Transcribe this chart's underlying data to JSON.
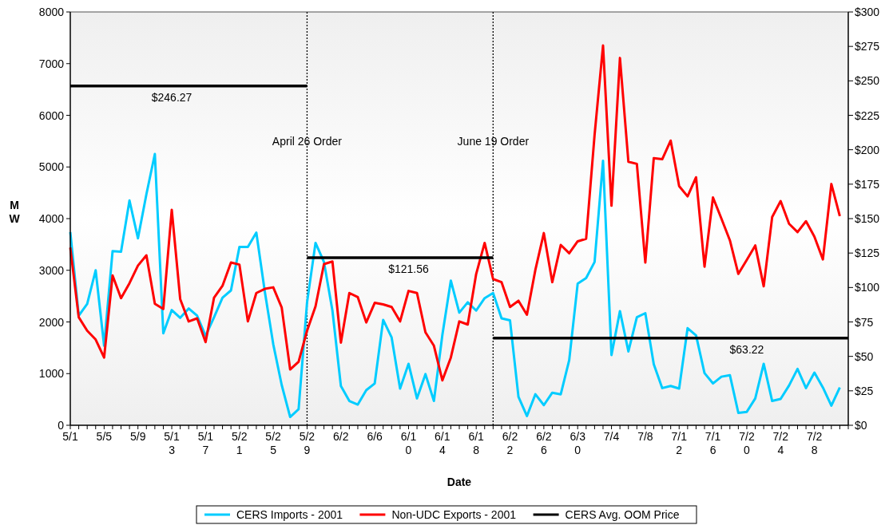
{
  "chart_data": {
    "type": "line",
    "xlabel": "Date",
    "ylabel": "MW",
    "x": [
      "--05-01",
      "--05-02",
      "--05-03",
      "--05-04",
      "--05-05",
      "--05-06",
      "--05-07",
      "--05-08",
      "--05-09",
      "--05-10",
      "--05-11",
      "--05-12",
      "--05-13",
      "--05-14",
      "--05-15",
      "--05-16",
      "--05-17",
      "--05-18",
      "--05-19",
      "--05-20",
      "--05-21",
      "--05-22",
      "--05-23",
      "--05-24",
      "--05-25",
      "--05-26",
      "--05-27",
      "--05-28",
      "--05-29",
      "--05-30",
      "--05-31",
      "--06-01",
      "--06-02",
      "--06-03",
      "--06-04",
      "--06-05",
      "--06-06",
      "--06-07",
      "--06-08",
      "--06-09",
      "--06-10",
      "--06-11",
      "--06-12",
      "--06-13",
      "--06-14",
      "--06-15",
      "--06-16",
      "--06-17",
      "--06-18",
      "--06-19",
      "--06-20",
      "--06-21",
      "--06-22",
      "--06-23",
      "--06-24",
      "--06-25",
      "--06-26",
      "--06-27",
      "--06-28",
      "--06-29",
      "--06-30",
      "--07-01",
      "--07-02",
      "--07-03",
      "--07-04",
      "--07-05",
      "--07-06",
      "--07-07",
      "--07-08",
      "--07-09",
      "--07-10",
      "--07-11",
      "--07-12",
      "--07-13",
      "--07-14",
      "--07-15",
      "--07-16",
      "--07-17",
      "--07-18",
      "--07-19",
      "--07-20",
      "--07-21",
      "--07-22",
      "--07-23",
      "--07-24",
      "--07-25",
      "--07-26",
      "--07-27",
      "--07-28",
      "--07-29",
      "--07-30",
      "--07-31"
    ],
    "series": [
      {
        "name": "CERS Imports - 2001",
        "color": "#00ccff",
        "values": [
          3740,
          2120,
          2350,
          3000,
          1540,
          3370,
          3360,
          4350,
          3620,
          4470,
          5250,
          1780,
          2230,
          2080,
          2260,
          2120,
          1730,
          2090,
          2470,
          2610,
          3450,
          3450,
          3730,
          2590,
          1570,
          780,
          160,
          310,
          2380,
          3530,
          3160,
          2220,
          760,
          470,
          400,
          680,
          810,
          2040,
          1700,
          710,
          1190,
          520,
          990,
          470,
          1750,
          2800,
          2180,
          2380,
          2220,
          2460,
          2560,
          2070,
          2030,
          550,
          180,
          600,
          390,
          630,
          600,
          1260,
          2740,
          2850,
          3160,
          5120,
          1360,
          2210,
          1430,
          2090,
          2170,
          1180,
          720,
          760,
          710,
          1880,
          1740,
          1010,
          810,
          940,
          970,
          240,
          260,
          520,
          1190,
          470,
          510,
          770,
          1090,
          720,
          1020,
          730,
          380,
          730
        ]
      },
      {
        "name": "Non-UDC Exports - 2001",
        "color": "#ff0000",
        "values": [
          3440,
          2090,
          1830,
          1660,
          1310,
          2900,
          2460,
          2750,
          3090,
          3290,
          2350,
          2250,
          4170,
          2440,
          2010,
          2070,
          1610,
          2470,
          2700,
          3150,
          3110,
          2010,
          2560,
          2640,
          2670,
          2280,
          1080,
          1230,
          1830,
          2300,
          3120,
          3170,
          1600,
          2560,
          2480,
          1990,
          2370,
          2340,
          2290,
          2010,
          2600,
          2560,
          1800,
          1540,
          870,
          1310,
          2010,
          1950,
          2930,
          3530,
          2830,
          2770,
          2290,
          2410,
          2140,
          3010,
          3720,
          2770,
          3490,
          3330,
          3560,
          3610,
          5620,
          7350,
          4250,
          7110,
          5100,
          5060,
          3150,
          5170,
          5150,
          5510,
          4630,
          4430,
          4800,
          3070,
          4410,
          4000,
          3580,
          2930,
          3200,
          3480,
          2690,
          4030,
          4340,
          3900,
          3740,
          3950,
          3650,
          3210,
          4670,
          4050
        ]
      },
      {
        "name": "CERS Avg. OOM Price",
        "color": "#000000",
        "axis": "y2",
        "x": [
          "--05-01",
          "--05-13",
          "--05-29"
        ],
        "values": [
          246.27,
          246.27,
          246.27
        ],
        "value_labels": [
          null,
          "$246.27",
          null
        ]
      },
      {
        "color": "#000000",
        "axis": "y2",
        "x": [
          "--05-29",
          "--06-10",
          "--06-20"
        ],
        "values": [
          121.56,
          121.56,
          121.56
        ],
        "value_labels": [
          null,
          "$121.56",
          null
        ]
      },
      {
        "color": "#000000",
        "axis": "y2",
        "x": [
          "--06-20",
          "--07-20",
          "--08-01"
        ],
        "values": [
          63.22,
          63.22,
          63.22
        ],
        "value_labels": [
          null,
          "$63.22",
          null
        ]
      }
    ],
    "xlim": [
      "--05-01",
      "--08-01"
    ],
    "xticks": [
      {
        "value": "--05-01",
        "label": "5/1"
      },
      {
        "value": "--05-05",
        "label": "5/5"
      },
      {
        "value": "--05-09",
        "label": "5/9"
      },
      {
        "value": "--05-13",
        "label": "5/13"
      },
      {
        "value": "--05-17",
        "label": "5/17"
      },
      {
        "value": "--05-21",
        "label": "5/21"
      },
      {
        "value": "--05-25",
        "label": "5/25"
      },
      {
        "value": "--05-29",
        "label": "5/29"
      },
      {
        "value": "--06-02",
        "label": "6/2"
      },
      {
        "value": "--06-06",
        "label": "6/6"
      },
      {
        "value": "--06-10",
        "label": "6/10"
      },
      {
        "value": "--06-14",
        "label": "6/14"
      },
      {
        "value": "--06-18",
        "label": "6/18"
      },
      {
        "value": "--06-22",
        "label": "6/22"
      },
      {
        "value": "--06-26",
        "label": "6/26"
      },
      {
        "value": "--06-30",
        "label": "6/30"
      },
      {
        "value": "--07-04",
        "label": "7/4"
      },
      {
        "value": "--07-08",
        "label": "7/8"
      },
      {
        "value": "--07-12",
        "label": "7/12"
      },
      {
        "value": "--07-16",
        "label": "7/16"
      },
      {
        "value": "--07-20",
        "label": "7/20"
      },
      {
        "value": "--07-24",
        "label": "7/24"
      },
      {
        "value": "--07-28",
        "label": "7/28"
      }
    ],
    "ylim": [
      0,
      8000
    ],
    "yticks": [
      0,
      1000,
      2000,
      3000,
      4000,
      5000,
      6000,
      7000,
      8000
    ],
    "y2lim": [
      0,
      300
    ],
    "y2ticks": [
      {
        "value": 0,
        "label": "$0"
      },
      {
        "value": 25,
        "label": "$25"
      },
      {
        "value": 50,
        "label": "$50"
      },
      {
        "value": 75,
        "label": "$75"
      },
      {
        "value": 100,
        "label": "$100"
      },
      {
        "value": 125,
        "label": "$125"
      },
      {
        "value": 150,
        "label": "$150"
      },
      {
        "value": 175,
        "label": "$175"
      },
      {
        "value": 200,
        "label": "$200"
      },
      {
        "value": 225,
        "label": "$225"
      },
      {
        "value": 250,
        "label": "$250"
      },
      {
        "value": 275,
        "label": "$275"
      },
      {
        "value": 300,
        "label": "$300"
      }
    ],
    "ref_lines": [
      {
        "axis": "x",
        "value": "--05-29",
        "label": "April 26 Order",
        "line_style": "dotted"
      },
      {
        "axis": "x",
        "value": "--06-20",
        "label": "June 19 Order",
        "line_style": "dotted"
      }
    ],
    "legend": "bottom"
  }
}
